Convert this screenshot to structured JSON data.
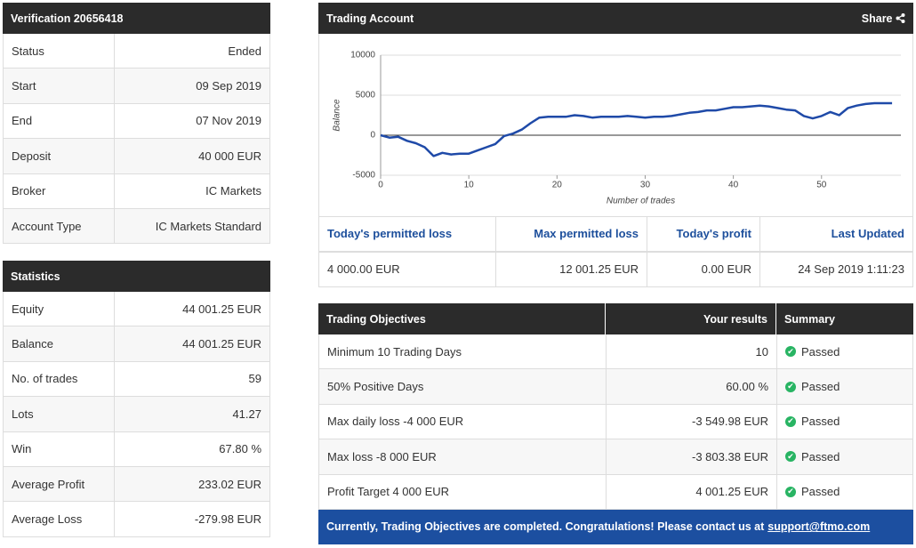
{
  "verification": {
    "title": "Verification 20656418",
    "rows": [
      [
        "Status",
        "Ended"
      ],
      [
        "Start",
        "09 Sep 2019"
      ],
      [
        "End",
        "07 Nov 2019"
      ],
      [
        "Deposit",
        "40 000 EUR"
      ],
      [
        "Broker",
        "IC Markets"
      ],
      [
        "Account Type",
        "IC Markets Standard"
      ]
    ]
  },
  "statistics": {
    "title": "Statistics",
    "rows": [
      [
        "Equity",
        "44 001.25 EUR"
      ],
      [
        "Balance",
        "44 001.25 EUR"
      ],
      [
        "No. of trades",
        "59"
      ],
      [
        "Lots",
        "41.27"
      ],
      [
        "Win",
        "67.80 %"
      ],
      [
        "Average Profit",
        "233.02 EUR"
      ],
      [
        "Average Loss",
        "-279.98 EUR"
      ]
    ]
  },
  "trading_account": {
    "title": "Trading Account",
    "share": "Share",
    "chart": {
      "type": "line",
      "x_label": "Number of trades",
      "y_label": "Balance",
      "color": "#1f4aa8",
      "x": [
        0,
        1,
        2,
        3,
        4,
        5,
        6,
        7,
        8,
        9,
        10,
        11,
        12,
        13,
        14,
        15,
        16,
        17,
        18,
        19,
        20,
        21,
        22,
        23,
        24,
        25,
        26,
        27,
        28,
        29,
        30,
        31,
        32,
        33,
        34,
        35,
        36,
        37,
        38,
        39,
        40,
        41,
        42,
        43,
        44,
        45,
        46,
        47,
        48,
        49,
        50,
        51,
        52,
        53,
        54,
        55,
        56,
        57,
        58
      ],
      "values": [
        0,
        -300,
        -200,
        -700,
        -1000,
        -1500,
        -2600,
        -2200,
        -2400,
        -2300,
        -2300,
        -1900,
        -1500,
        -1100,
        -100,
        200,
        700,
        1500,
        2200,
        2300,
        2300,
        2300,
        2500,
        2400,
        2200,
        2300,
        2300,
        2300,
        2400,
        2300,
        2200,
        2300,
        2300,
        2400,
        2600,
        2800,
        2900,
        3100,
        3100,
        3300,
        3500,
        3500,
        3600,
        3700,
        3600,
        3400,
        3200,
        3100,
        2400,
        2100,
        2400,
        2900,
        2500,
        3400,
        3700,
        3900,
        4000,
        4000,
        4000
      ],
      "xlim": [
        0,
        59
      ],
      "ylim": [
        -5000,
        10000
      ],
      "xticks": [
        0,
        10,
        20,
        30,
        40,
        50
      ],
      "yticks": [
        -5000,
        0,
        5000,
        10000
      ],
      "grid": true
    },
    "summary": {
      "headers": [
        "Today's permitted loss",
        "Max permitted loss",
        "Today's profit",
        "Last Updated"
      ],
      "values": [
        "4 000.00 EUR",
        "12 001.25 EUR",
        "0.00 EUR",
        "24 Sep 2019 1:11:23"
      ]
    }
  },
  "objectives": {
    "headers": [
      "Trading Objectives",
      "Your results",
      "Summary"
    ],
    "rows": [
      [
        "Minimum 10 Trading Days",
        "10",
        "Passed"
      ],
      [
        "50% Positive Days",
        "60.00 %",
        "Passed"
      ],
      [
        "Max daily loss -4 000 EUR",
        "-3 549.98 EUR",
        "Passed"
      ],
      [
        "Max loss -8 000 EUR",
        "-3 803.38 EUR",
        "Passed"
      ],
      [
        "Profit Target 4 000 EUR",
        "4 001.25 EUR",
        "Passed"
      ]
    ],
    "banner": {
      "text": "Currently, Trading Objectives are completed. Congratulations! Please contact us at",
      "link": "support@ftmo.com"
    }
  }
}
